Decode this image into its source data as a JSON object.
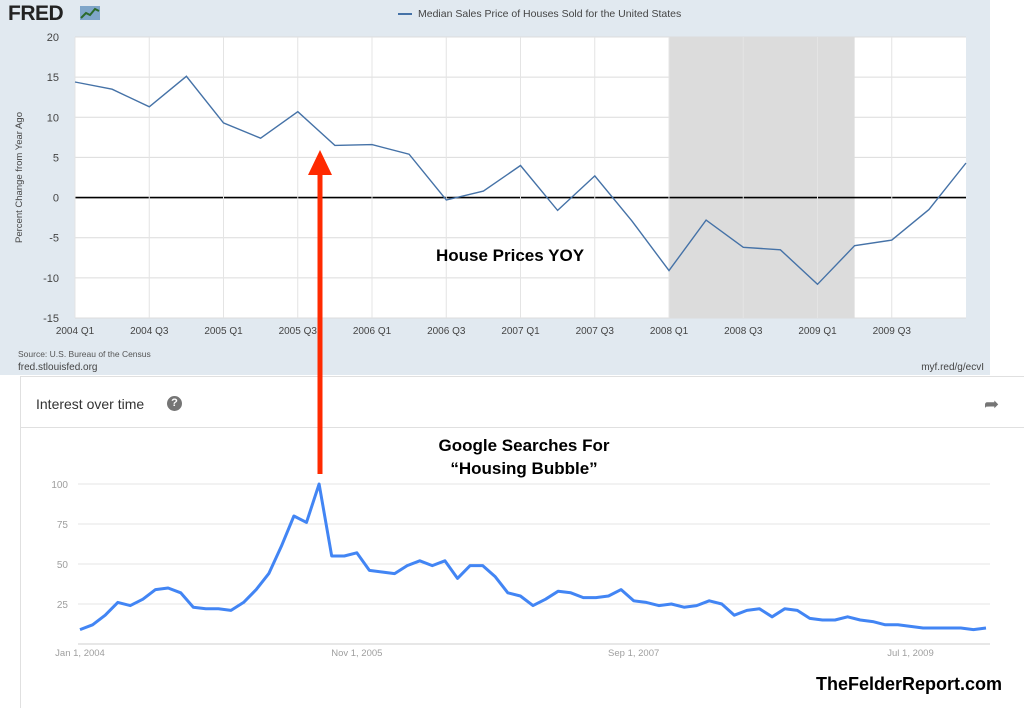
{
  "fred": {
    "logo": "FRED",
    "source": "Source: U.S. Bureau of the Census",
    "url": "fred.stlouisfed.org",
    "short_url": "myf.red/g/ecvI"
  },
  "trends": {
    "title": "Interest over time",
    "help_icon": "question-icon",
    "share_icon": "share-icon"
  },
  "annotations": {
    "house_prices": "House Prices YOY",
    "google_line1": "Google Searches For",
    "google_line2": "“Housing Bubble”",
    "watermark": "TheFelderReport.com"
  },
  "colors": {
    "fred_line": "#4572a7",
    "trends_line": "#4285f4",
    "arrow": "#ff2a00",
    "recession": "#dcdcdc"
  },
  "chart_data": [
    {
      "type": "line",
      "title": "",
      "xlabel": "",
      "ylabel": "Percent Change from Year Ago",
      "ylim": [
        -15,
        20
      ],
      "yticks": [
        20,
        15,
        10,
        5,
        0,
        -5,
        -10,
        -15
      ],
      "xticks": [
        "2004 Q1",
        "2004 Q3",
        "2005 Q1",
        "2005 Q3",
        "2006 Q1",
        "2006 Q3",
        "2007 Q1",
        "2007 Q3",
        "2008 Q1",
        "2008 Q3",
        "2009 Q1",
        "2009 Q3"
      ],
      "grid": true,
      "recession_shading": [
        "2008 Q1",
        "2009 Q2"
      ],
      "series": [
        {
          "name": "Median Sales Price of Houses Sold for the United States",
          "x": [
            "2004 Q1",
            "2004 Q2",
            "2004 Q3",
            "2004 Q4",
            "2005 Q1",
            "2005 Q2",
            "2005 Q3",
            "2005 Q4",
            "2006 Q1",
            "2006 Q2",
            "2006 Q3",
            "2006 Q4",
            "2007 Q1",
            "2007 Q2",
            "2007 Q3",
            "2007 Q4",
            "2008 Q1",
            "2008 Q2",
            "2008 Q3",
            "2008 Q4",
            "2009 Q1",
            "2009 Q2",
            "2009 Q3",
            "2009 Q4",
            "2010 Q1"
          ],
          "values": [
            14.4,
            13.5,
            11.3,
            15.1,
            9.3,
            7.4,
            10.7,
            6.5,
            6.6,
            5.4,
            -0.3,
            0.8,
            4.0,
            -1.6,
            2.7,
            -2.9,
            -9.1,
            -2.8,
            -6.2,
            -6.5,
            -10.8,
            -6.0,
            -5.3,
            -1.5,
            4.3
          ]
        }
      ]
    },
    {
      "type": "line",
      "title": "Interest over time",
      "xlabel": "",
      "ylabel": "",
      "ylim": [
        0,
        100
      ],
      "yticks": [
        25,
        50,
        75,
        100
      ],
      "xticks": [
        "Jan 1, 2004",
        "Nov 1, 2005",
        "Sep 1, 2007",
        "Jul 1, 2009"
      ],
      "grid": true,
      "series": [
        {
          "name": "Housing Bubble",
          "x_start": "Jan 1, 2004",
          "values": [
            9,
            12,
            18,
            26,
            24,
            28,
            34,
            35,
            32,
            23,
            22,
            22,
            21,
            26,
            34,
            44,
            61,
            80,
            76,
            100,
            55,
            55,
            57,
            46,
            45,
            44,
            49,
            52,
            49,
            52,
            41,
            49,
            49,
            42,
            32,
            30,
            24,
            28,
            33,
            32,
            29,
            29,
            30,
            34,
            27,
            26,
            24,
            25,
            23,
            24,
            27,
            25,
            18,
            21,
            22,
            17,
            22,
            21,
            16,
            15,
            15,
            17,
            15,
            14,
            12,
            12,
            11,
            10,
            10,
            10,
            10,
            9,
            10
          ]
        }
      ]
    }
  ]
}
